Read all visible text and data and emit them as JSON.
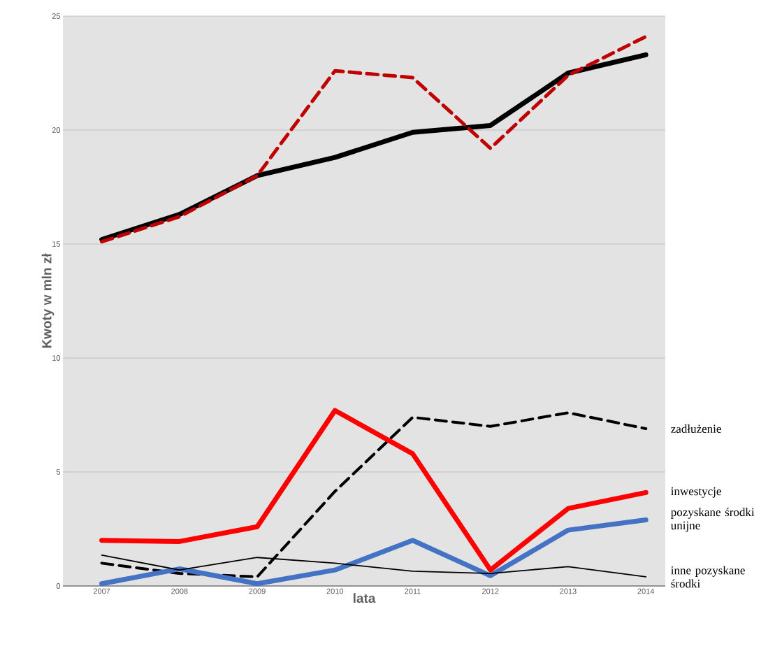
{
  "chart_data": {
    "type": "line",
    "xlabel": "lata",
    "ylabel": "Kwoty w  mln zł",
    "categories": [
      "2007",
      "2008",
      "2009",
      "2010",
      "2011",
      "2012",
      "2013",
      "2014"
    ],
    "ylim": [
      0,
      25
    ],
    "yticks": [
      0,
      5,
      10,
      15,
      20,
      25
    ],
    "grid": "y",
    "legend": false,
    "marker": "none",
    "series": [
      {
        "color": "#000000",
        "line_style": "solid",
        "values": [
          15.2,
          16.3,
          18.0,
          18.8,
          19.9,
          20.2,
          22.5,
          23.3
        ]
      },
      {
        "color": "#c00000",
        "line_style": "dashed",
        "values": [
          15.1,
          16.2,
          18.0,
          22.6,
          22.3,
          19.2,
          22.4,
          24.1
        ]
      },
      {
        "name": "zadłużenie",
        "color": "#000000",
        "line_style": "dashed",
        "values": [
          1.0,
          0.55,
          0.4,
          4.15,
          7.4,
          7.0,
          7.6,
          6.9
        ]
      },
      {
        "name": "inwestycje",
        "color": "#ff0000",
        "line_style": "solid",
        "values": [
          2.0,
          1.95,
          2.6,
          7.7,
          5.8,
          0.7,
          3.4,
          4.1
        ]
      },
      {
        "name": "pozyskane środki unijne",
        "color": "#4472c4",
        "line_style": "solid",
        "values": [
          0.1,
          0.75,
          0.1,
          0.7,
          2.0,
          0.45,
          2.45,
          2.9
        ]
      },
      {
        "name": "inne pozyskane środki",
        "color": "#000000",
        "line_style": "solid",
        "values": [
          1.35,
          0.7,
          1.25,
          1.0,
          0.65,
          0.55,
          0.85,
          0.4
        ]
      }
    ]
  }
}
